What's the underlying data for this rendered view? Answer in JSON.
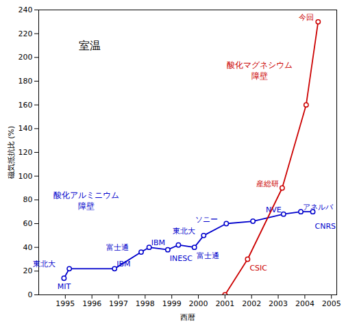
{
  "chart_data": {
    "type": "line",
    "xlabel": "西暦",
    "ylabel": "磁気抵抗比 (%)",
    "xlim": [
      1994,
      2005.2
    ],
    "xticks": [
      1995,
      1996,
      1997,
      1998,
      1999,
      2000,
      2001,
      2002,
      2003,
      2004,
      2005
    ],
    "ylim": [
      0,
      240
    ],
    "yticks": [
      0,
      20,
      40,
      60,
      80,
      100,
      120,
      140,
      160,
      180,
      200,
      220,
      240
    ],
    "grid": false,
    "series": [
      {
        "name": "酸化アルミニウム\n障壁",
        "color": "#0000cc",
        "marker": "circle",
        "x": [
          1994.95,
          1995.15,
          1996.85,
          1997.85,
          1998.15,
          1998.85,
          1999.25,
          1999.85,
          2000.2,
          2001.05,
          2002.05,
          2003.2,
          2003.85,
          2004.3
        ],
        "values": [
          14,
          22,
          22,
          36,
          40,
          38,
          42,
          40,
          50,
          60,
          62,
          68,
          70,
          70
        ],
        "annotations": [
          {
            "text": "MIT",
            "x": 1994.95,
            "y": 14
          },
          {
            "text": "東北大",
            "x": 1995.15,
            "y": 22
          },
          {
            "text": "IBM",
            "x": 1996.85,
            "y": 22
          },
          {
            "text": "富士通",
            "x": 1997.85,
            "y": 36
          },
          {
            "text": "IBM",
            "x": 1998.15,
            "y": 40
          },
          {
            "text": "INESC",
            "x": 1998.85,
            "y": 38
          },
          {
            "text": "富士通",
            "x": 1999.85,
            "y": 40
          },
          {
            "text": "東北大",
            "x": 2000.2,
            "y": 50
          },
          {
            "text": "ソニー",
            "x": 2001.05,
            "y": 60
          },
          {
            "text": "NVE",
            "x": 2003.2,
            "y": 68
          },
          {
            "text": "アネルバ",
            "x": 2003.85,
            "y": 70
          },
          {
            "text": "CNRS",
            "x": 2004.3,
            "y": 65
          }
        ]
      },
      {
        "name": "酸化マグネシウム\n障壁",
        "color": "#cc0000",
        "marker": "circle",
        "x": [
          2001.0,
          2001.85,
          2003.15,
          2004.05,
          2004.5
        ],
        "values": [
          0,
          30,
          90,
          160,
          230
        ],
        "annotations": [
          {
            "text": "CSIC",
            "x": 2001.85,
            "y": 30
          },
          {
            "text": "産総研",
            "x": 2003.15,
            "y": 90
          },
          {
            "text": "今回",
            "x": 2004.5,
            "y": 230
          }
        ]
      }
    ],
    "annotations": [
      {
        "text": "室温",
        "x": 1995.5,
        "y": 210
      }
    ]
  }
}
